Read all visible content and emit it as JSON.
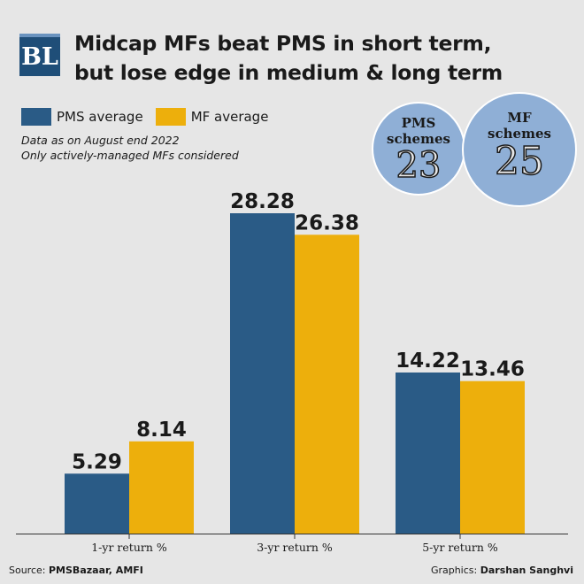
{
  "logo": "BL",
  "title_line1": "Midcap MFs beat PMS in short term,",
  "title_line2": "but lose edge in medium & long term",
  "notes_line1": "Data as on August end 2022",
  "notes_line2": "Only actively-managed MFs considered",
  "bubbles": [
    {
      "line1": "PMS",
      "line2": "schemes",
      "count": "23"
    },
    {
      "line1": "MF",
      "line2": "schemes",
      "count": "25"
    }
  ],
  "footer": {
    "source_prefix": "Source:",
    "source": "PMSBazaar, AMFI",
    "graphics_prefix": "Graphics:",
    "graphics": "Darshan Sanghvi"
  },
  "colors": {
    "pms": "#2a5b86",
    "mf": "#edaf0c",
    "background": "#e6e6e6"
  },
  "chart_data": {
    "type": "bar",
    "categories": [
      "1-yr return %",
      "3-yr return %",
      "5-yr return %"
    ],
    "series": [
      {
        "name": "PMS average",
        "values": [
          5.29,
          28.28,
          14.22
        ],
        "labels": [
          "5.29",
          "28.28",
          "14.22"
        ]
      },
      {
        "name": "MF average",
        "values": [
          8.14,
          26.38,
          13.46
        ],
        "labels": [
          "8.14",
          "26.38",
          "13.46"
        ]
      }
    ],
    "ylim": [
      0,
      30
    ],
    "grid": false,
    "legend_position": "top-left"
  }
}
